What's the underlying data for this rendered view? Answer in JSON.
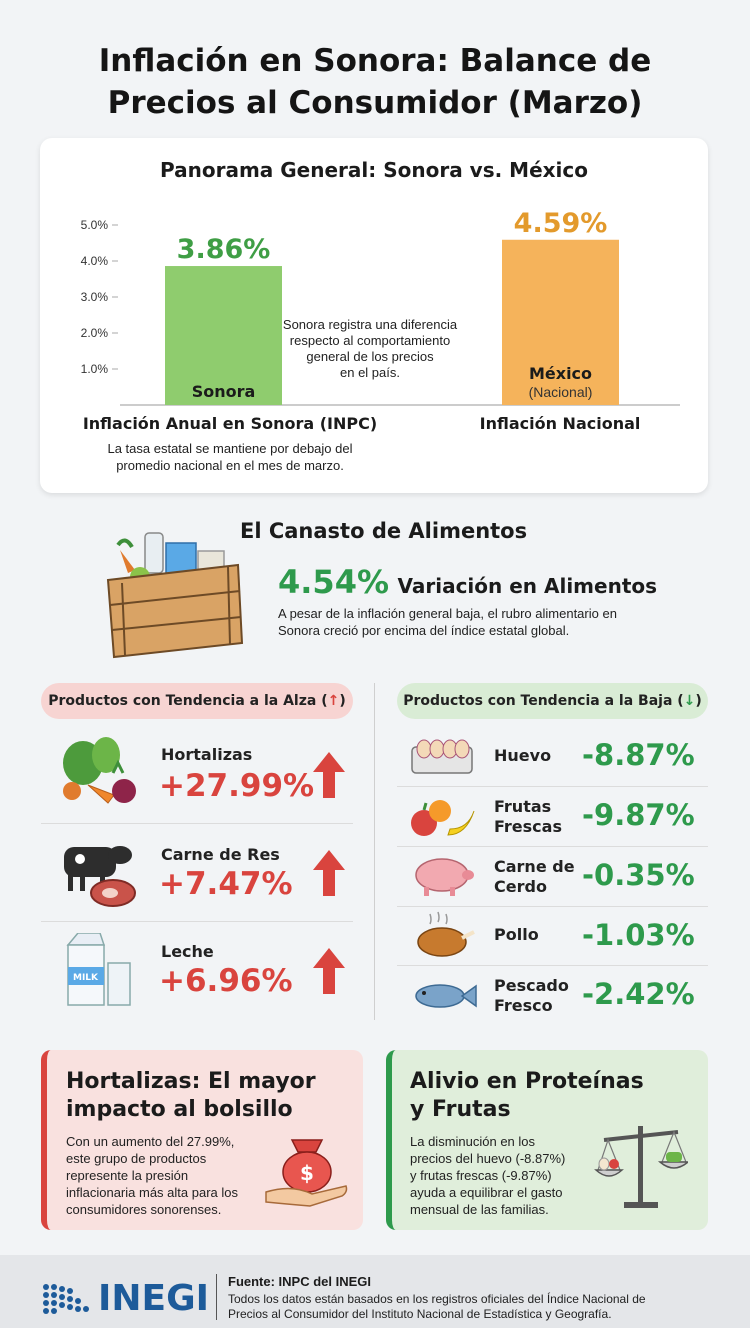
{
  "title_line1": "Inflación en Sonora: Balance de",
  "title_line2": "Precios al Consumidor (Marzo)",
  "overview": {
    "title": "Panorama General: Sonora vs. México",
    "center_note": [
      "Sonora registra una diferencia",
      "respecto al comportamiento",
      "general de los precios",
      "en el país."
    ],
    "left_caption": "Inflación Anual en Sonora (INPC)",
    "left_note": [
      "La tasa estatal se mantiene por debajo del",
      "promedio nacional en el mes de marzo."
    ],
    "right_caption": "Inflación Nacional",
    "mexico_sub": "(Nacional)"
  },
  "chart_data": {
    "type": "bar",
    "categories": [
      "Sonora",
      "México"
    ],
    "values": [
      3.86,
      4.59
    ],
    "value_labels": [
      "3.86%",
      "4.59%"
    ],
    "ylim": [
      0,
      5.0
    ],
    "yticks": [
      "1.0%",
      "2.0%",
      "3.0%",
      "4.0%",
      "5.0%"
    ],
    "colors": [
      "#8fcc6e",
      "#f5b35b"
    ],
    "value_label_colors": [
      "#3f9e45",
      "#e39a2c"
    ]
  },
  "food": {
    "title": "El Canasto de Alimentos",
    "value": "4.54%",
    "label": "Variación en Alimentos",
    "note": [
      "A pesar de la inflación general baja, el rubro alimentario en",
      "Sonora creció por encima del índice estatal global."
    ]
  },
  "up": {
    "header": "Productos con Tendencia a la Alza (",
    "arrow": "↑",
    "close": ")",
    "items": [
      {
        "name": "Hortalizas",
        "value": "+27.99%",
        "icon": "vegetables-icon"
      },
      {
        "name": "Carne de Res",
        "value": "+7.47%",
        "icon": "cow-icon"
      },
      {
        "name": "Leche",
        "value": "+6.96%",
        "icon": "milk-icon"
      }
    ]
  },
  "down": {
    "header": "Productos con Tendencia a la Baja (",
    "arrow": "↓",
    "close": ")",
    "items": [
      {
        "name1": "Huevo",
        "name2": "",
        "value": "-8.87%",
        "icon": "eggs-icon"
      },
      {
        "name1": "Frutas",
        "name2": "Frescas",
        "value": "-9.87%",
        "icon": "fruits-icon"
      },
      {
        "name1": "Carne de",
        "name2": "Cerdo",
        "value": "-0.35%",
        "icon": "pig-icon"
      },
      {
        "name1": "Pollo",
        "name2": "",
        "value": "-1.03%",
        "icon": "chicken-icon"
      },
      {
        "name1": "Pescado",
        "name2": "Fresco",
        "value": "-2.42%",
        "icon": "fish-icon"
      }
    ]
  },
  "card_red": {
    "title": [
      "Hortalizas: El mayor",
      "impacto al bolsillo"
    ],
    "text": [
      "Con un aumento del 27.99%,",
      "este grupo de productos",
      "represente la presión",
      "inflacionaria más alta para los",
      "consumidores sonorenses."
    ],
    "coin_symbol": "$"
  },
  "card_green": {
    "title": [
      "Alivio en Proteínas",
      "y Frutas"
    ],
    "text": [
      "La disminución en los",
      "precios del huevo (-8.87%)",
      "y frutas frescas (-9.87%)",
      "ayuda a equilibrar el gasto",
      "mensual de las familias."
    ]
  },
  "footer": {
    "logo": "INEGI",
    "source": "Fuente: INPC del INEGI",
    "text": [
      "Todos los datos están basados en los registros oficiales del Índice Nacional de",
      "Precios al Consumidor del Instituto Nacional de Estadística y Geografía."
    ]
  }
}
